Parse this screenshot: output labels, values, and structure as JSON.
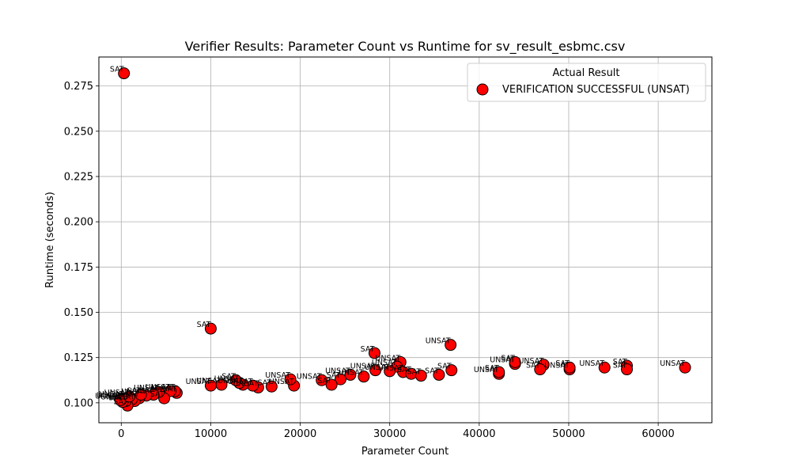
{
  "chart_data": {
    "type": "scatter",
    "title": "Verifier Results: Parameter Count vs Runtime for sv_result_esbmc.csv",
    "xlabel": "Parameter Count",
    "ylabel": "Runtime (seconds)",
    "xlim": [
      -2500,
      66000
    ],
    "ylim": [
      0.089,
      0.291
    ],
    "xticks": [
      0,
      10000,
      20000,
      30000,
      40000,
      50000,
      60000
    ],
    "yticks": [
      0.1,
      0.125,
      0.15,
      0.175,
      0.2,
      0.225,
      0.25,
      0.275
    ],
    "xtick_labels": [
      "0",
      "10000",
      "20000",
      "30000",
      "40000",
      "50000",
      "60000"
    ],
    "ytick_labels": [
      "0.100",
      "0.125",
      "0.150",
      "0.175",
      "0.200",
      "0.225",
      "0.250",
      "0.275"
    ],
    "grid": true,
    "legend": {
      "title": "Actual Result",
      "placement": "top-right",
      "entries": [
        "VERIFICATION SUCCESSFUL (UNSAT)"
      ]
    },
    "marker_color": "#ff0000",
    "marker_edge_color": "#000000",
    "series": [
      {
        "name": "VERIFICATION SUCCESSFUL (UNSAT)",
        "points": [
          {
            "x": 300,
            "y": 0.282,
            "label": "SAT"
          },
          {
            "x": 10000,
            "y": 0.141,
            "label": "SAT"
          },
          {
            "x": 28300,
            "y": 0.1275,
            "label": "SAT"
          },
          {
            "x": 36800,
            "y": 0.132,
            "label": "UNSAT"
          },
          {
            "x": 31200,
            "y": 0.1225,
            "label": "UNSAT"
          },
          {
            "x": 30800,
            "y": 0.12,
            "label": "UNSAT"
          },
          {
            "x": 31500,
            "y": 0.117,
            "label": "UNSAT"
          },
          {
            "x": 30000,
            "y": 0.1175,
            "label": "UNSAT"
          },
          {
            "x": 28400,
            "y": 0.118,
            "label": "UNSAT"
          },
          {
            "x": 32400,
            "y": 0.116,
            "label": "SAT"
          },
          {
            "x": 33500,
            "y": 0.115,
            "label": "SAT"
          },
          {
            "x": 35500,
            "y": 0.1155,
            "label": "SAT"
          },
          {
            "x": 36900,
            "y": 0.118,
            "label": "SAT"
          },
          {
            "x": 27100,
            "y": 0.1145,
            "label": "UNSAT"
          },
          {
            "x": 25600,
            "y": 0.1155,
            "label": "UNSAT"
          },
          {
            "x": 24500,
            "y": 0.113,
            "label": "SAT"
          },
          {
            "x": 23500,
            "y": 0.11,
            "label": "SAT"
          },
          {
            "x": 22400,
            "y": 0.1125,
            "label": "UNSAT"
          },
          {
            "x": 19300,
            "y": 0.1095,
            "label": "UNSAT"
          },
          {
            "x": 18900,
            "y": 0.113,
            "label": "UNSAT"
          },
          {
            "x": 16800,
            "y": 0.109,
            "label": "SAT"
          },
          {
            "x": 15300,
            "y": 0.1085,
            "label": "UNSAT"
          },
          {
            "x": 14700,
            "y": 0.1095,
            "label": "UNSAT"
          },
          {
            "x": 13600,
            "y": 0.11,
            "label": "UNSAT"
          },
          {
            "x": 13200,
            "y": 0.111,
            "label": "UNSAT"
          },
          {
            "x": 12800,
            "y": 0.1125,
            "label": "SAT"
          },
          {
            "x": 11200,
            "y": 0.11,
            "label": "UNSAT"
          },
          {
            "x": 10000,
            "y": 0.1095,
            "label": "UNSAT"
          },
          {
            "x": 42200,
            "y": 0.116,
            "label": "UNSAT"
          },
          {
            "x": 42200,
            "y": 0.117,
            "label": "SAT"
          },
          {
            "x": 44000,
            "y": 0.1215,
            "label": "UNSAT"
          },
          {
            "x": 44000,
            "y": 0.1225,
            "label": "SAT"
          },
          {
            "x": 47200,
            "y": 0.121,
            "label": "UNSAT"
          },
          {
            "x": 46800,
            "y": 0.1185,
            "label": "SAT"
          },
          {
            "x": 50100,
            "y": 0.1185,
            "label": "UNSAT"
          },
          {
            "x": 50100,
            "y": 0.1195,
            "label": "SAT"
          },
          {
            "x": 54000,
            "y": 0.1195,
            "label": "UNSAT"
          },
          {
            "x": 56500,
            "y": 0.1205,
            "label": "SAT"
          },
          {
            "x": 56500,
            "y": 0.1185,
            "label": "SAT"
          },
          {
            "x": 63000,
            "y": 0.1195,
            "label": "UNSAT"
          },
          {
            "x": 6200,
            "y": 0.1055,
            "label": "UNSAT"
          },
          {
            "x": 6000,
            "y": 0.1065,
            "label": "SAT"
          },
          {
            "x": 5500,
            "y": 0.1065,
            "label": "UNSAT"
          },
          {
            "x": 4800,
            "y": 0.1025,
            "label": "SAT"
          },
          {
            "x": 4200,
            "y": 0.106,
            "label": "UNSAT"
          },
          {
            "x": 3600,
            "y": 0.1045,
            "label": "SAT"
          },
          {
            "x": 2800,
            "y": 0.104,
            "label": "UNSAT"
          },
          {
            "x": 2000,
            "y": 0.1025,
            "label": "SAT"
          },
          {
            "x": 1500,
            "y": 0.101,
            "label": "UNSAT"
          },
          {
            "x": 1200,
            "y": 0.102,
            "label": "SAT"
          },
          {
            "x": 700,
            "y": 0.0985,
            "label": "SAT"
          },
          {
            "x": 500,
            "y": 0.101,
            "label": "UNSAT"
          },
          {
            "x": 300,
            "y": 0.1025,
            "label": "UNSAT"
          },
          {
            "x": 150,
            "y": 0.1005,
            "label": "SAT"
          },
          {
            "x": 50,
            "y": 0.102,
            "label": "UNSAT"
          },
          {
            "x": -100,
            "y": 0.1015,
            "label": "UNSAT"
          },
          {
            "x": 900,
            "y": 0.1035,
            "label": "UNSAT"
          },
          {
            "x": 2200,
            "y": 0.1045,
            "label": "SAT"
          }
        ]
      }
    ]
  }
}
